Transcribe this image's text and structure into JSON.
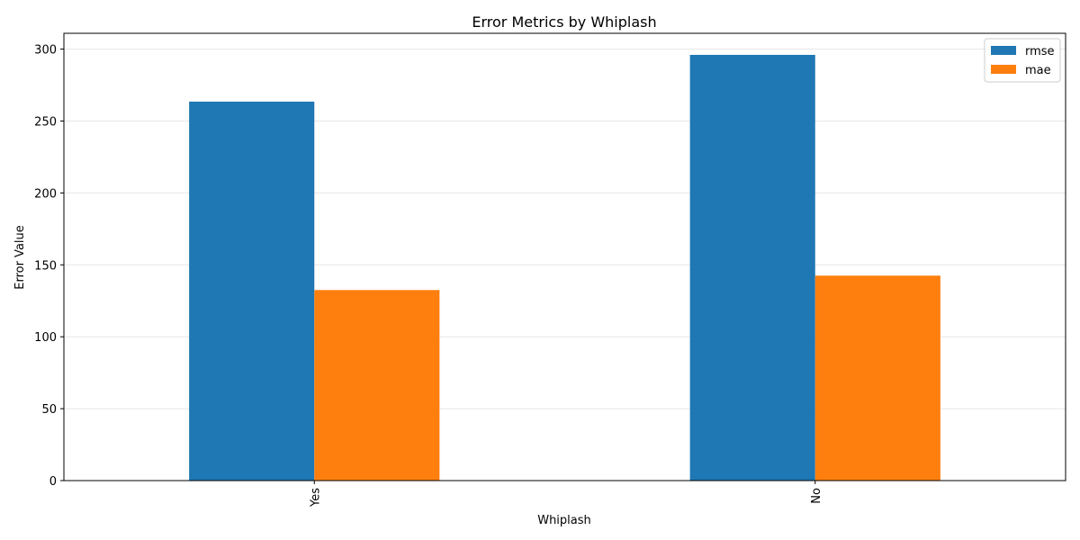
{
  "chart_data": {
    "type": "bar",
    "title": "Error Metrics by Whiplash",
    "xlabel": "Whiplash",
    "ylabel": "Error Value",
    "categories": [
      "Yes",
      "No"
    ],
    "series": [
      {
        "name": "rmse",
        "values": [
          263.5,
          296.0
        ],
        "color": "#1f77b4"
      },
      {
        "name": "mae",
        "values": [
          132.5,
          142.5
        ],
        "color": "#ff7f0e"
      }
    ],
    "ylim": [
      0,
      311
    ],
    "yticks": [
      0,
      50,
      100,
      150,
      200,
      250,
      300
    ],
    "grid": "horizontal",
    "legend_position": "top-right",
    "x_tick_rotation": "vertical"
  }
}
